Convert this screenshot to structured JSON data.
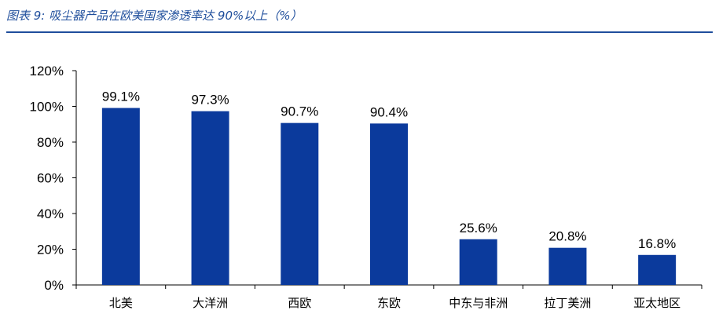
{
  "figure": {
    "title": "图表 9:  吸尘器产品在欧美国家渗透率达 90%以上（%）"
  },
  "colors": {
    "bar": "#0b3a9c",
    "title": "#1f4e9c",
    "axis": "#000000"
  },
  "chart_data": {
    "type": "bar",
    "title": "",
    "xlabel": "",
    "ylabel": "",
    "categories": [
      "北美",
      "大洋洲",
      "西欧",
      "东欧",
      "中东与非洲",
      "拉丁美洲",
      "亚太地区"
    ],
    "values": [
      99.1,
      97.3,
      90.7,
      90.4,
      25.6,
      20.8,
      16.8
    ],
    "data_labels": [
      "99.1%",
      "97.3%",
      "90.7%",
      "90.4%",
      "25.6%",
      "20.8%",
      "16.8%"
    ],
    "y_ticks": [
      0,
      20,
      40,
      60,
      80,
      100,
      120
    ],
    "y_tick_labels": [
      "0%",
      "20%",
      "40%",
      "60%",
      "80%",
      "100%",
      "120%"
    ],
    "ylim": [
      0,
      120
    ],
    "grid": false,
    "legend": "none"
  }
}
